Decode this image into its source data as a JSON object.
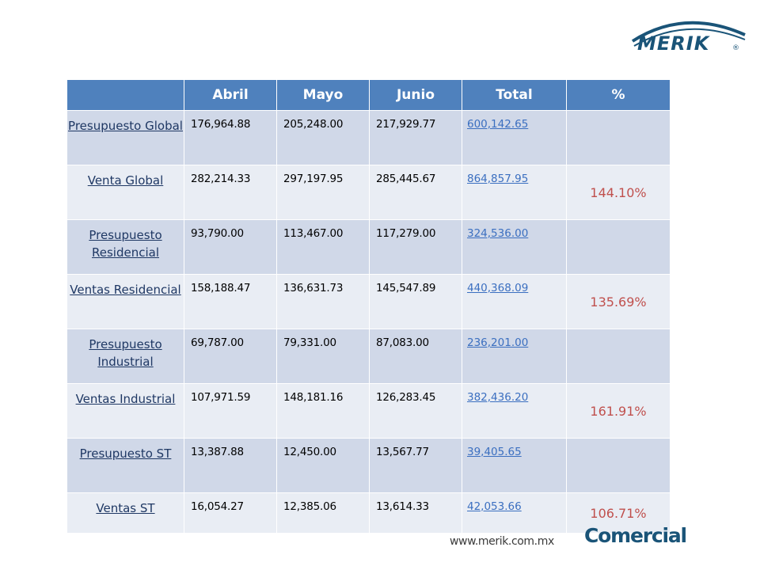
{
  "brand": {
    "logo_text": "MERIK"
  },
  "table": {
    "headers": [
      "",
      "Abril",
      "Mayo",
      "Junio",
      "Total",
      "%"
    ],
    "rows": [
      {
        "label": "Presupuesto Global",
        "values": [
          "176,964.88",
          "205,248.00",
          "217,929.77"
        ],
        "total": "600,142.65",
        "pct": ""
      },
      {
        "label": "Venta Global",
        "values": [
          "282,214.33",
          "297,197.95",
          "285,445.67"
        ],
        "total": "864,857.95",
        "pct": "144.10%"
      },
      {
        "label": "Presupuesto Residencial",
        "values": [
          "93,790.00",
          "113,467.00",
          "117,279.00"
        ],
        "total": "324,536.00",
        "pct": ""
      },
      {
        "label": "Ventas Residencial",
        "values": [
          "158,188.47",
          "136,631.73",
          "145,547.89"
        ],
        "total": "440,368.09",
        "pct": "135.69%"
      },
      {
        "label": "Presupuesto Industrial",
        "values": [
          "69,787.00",
          "79,331.00",
          "87,083.00"
        ],
        "total": "236,201.00",
        "pct": ""
      },
      {
        "label": "Ventas Industrial",
        "values": [
          "107,971.59",
          "148,181.16",
          "126,283.45"
        ],
        "total": "382,436.20",
        "pct": "161.91%"
      },
      {
        "label": "Presupuesto ST",
        "values": [
          "13,387.88",
          "12,450.00",
          "13,567.77"
        ],
        "total": "39,405.65",
        "pct": ""
      },
      {
        "label": "Ventas ST",
        "values": [
          "16,054.27",
          "12,385.06",
          "13,614.33"
        ],
        "total": "42,053.66",
        "pct": "106.71%"
      }
    ]
  },
  "footer": {
    "url": "www.merik.com.mx",
    "section": "Comercial"
  },
  "colors": {
    "header_bg": "#4f81bd",
    "row_odd": "#d0d8e8",
    "row_even": "#e9edf4",
    "pct_text": "#c0504d",
    "link": "#3b6fc0",
    "brand": "#1a5478"
  }
}
